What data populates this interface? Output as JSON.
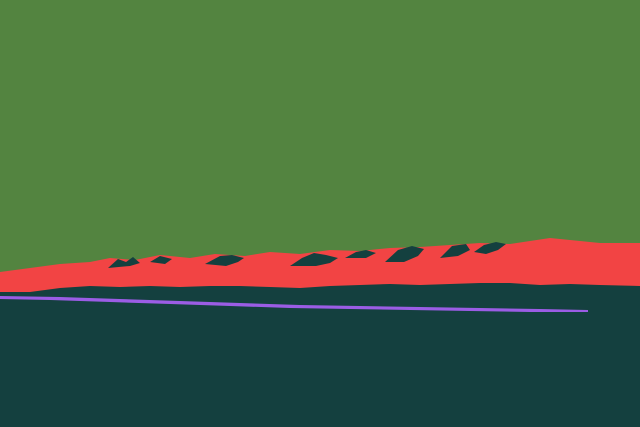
{
  "scene": {
    "colors": {
      "sky": "#538440",
      "mountains": "#F24444",
      "ridge_shadow": "#14403F",
      "ground": "#14403F",
      "water_line": "#9B5DE5"
    },
    "layers": [
      "sky",
      "mountain-range",
      "ridge-shadows",
      "ground",
      "water-line"
    ]
  }
}
